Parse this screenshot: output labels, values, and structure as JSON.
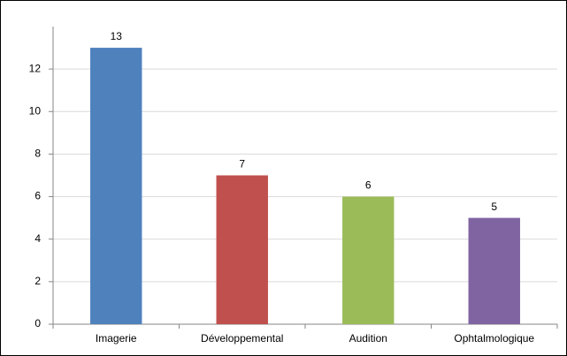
{
  "chart_data": {
    "type": "bar",
    "categories": [
      "Imagerie",
      "Développemental",
      "Audition",
      "Ophtalmologique"
    ],
    "values": [
      13,
      7,
      6,
      5
    ],
    "colors": [
      "#4f81bd",
      "#c0504d",
      "#9bbb59",
      "#8064a2"
    ],
    "ylim": [
      0,
      14
    ],
    "yticks": [
      0,
      2,
      4,
      6,
      8,
      10,
      12
    ],
    "grid": true,
    "data_labels": true
  }
}
